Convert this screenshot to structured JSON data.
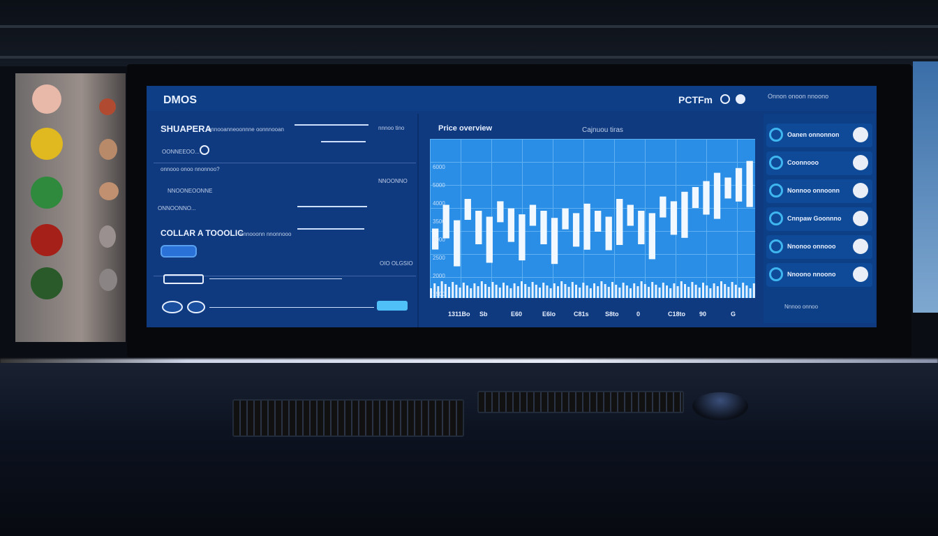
{
  "screen": {
    "logo": "DMOS",
    "header_right": "PCTFm",
    "left": {
      "section1_title": "SHUAPERA",
      "section1_sub": "onnooanneoonnne oonnnooan",
      "row1_label": "OONNEEOO...",
      "row2_label": "onnooo onoo nnonnoo?",
      "row3_label": "NNOONEOONNE",
      "row4_label": "ONNOONNO...",
      "section2_title": "COLLAR A TOOOLIC",
      "section2_sub": "nnnooonn nnonnooo",
      "side1": "nnnoo tino",
      "side2": "NNOONNO",
      "side3": "OIO OLGSIO"
    },
    "chart": {
      "title": "Price overview",
      "subtitle": "Cajnuou tiras",
      "y_ticks": [
        "6000",
        "5000",
        "4000",
        "3500",
        "3000",
        "2500",
        "2000",
        "1500"
      ],
      "x_ticks": [
        "1311Bo",
        "Sb",
        "E60",
        "E6lo",
        "C81s",
        "S8to",
        "0",
        "C18to",
        "90",
        "G"
      ],
      "candles": [
        0.35,
        0.55,
        0.42,
        0.6,
        0.5,
        0.45,
        0.58,
        0.52,
        0.47,
        0.55,
        0.5,
        0.44,
        0.52,
        0.48,
        0.56,
        0.5,
        0.45,
        0.6,
        0.55,
        0.5,
        0.48,
        0.62,
        0.58,
        0.66,
        0.7,
        0.75,
        0.82,
        0.78,
        0.86,
        0.92
      ],
      "accent": "#2a8ee6"
    },
    "right": {
      "header": "Onnon onoon nnoono",
      "items": [
        "Oanen onnonnon",
        "Coonnooo",
        "Nonnoo onnoonn",
        "Cnnpaw Goonnno",
        "Nnonoo onnooo",
        "Nnoono nnoono"
      ],
      "footer": "Nnnoo onnoo"
    }
  }
}
